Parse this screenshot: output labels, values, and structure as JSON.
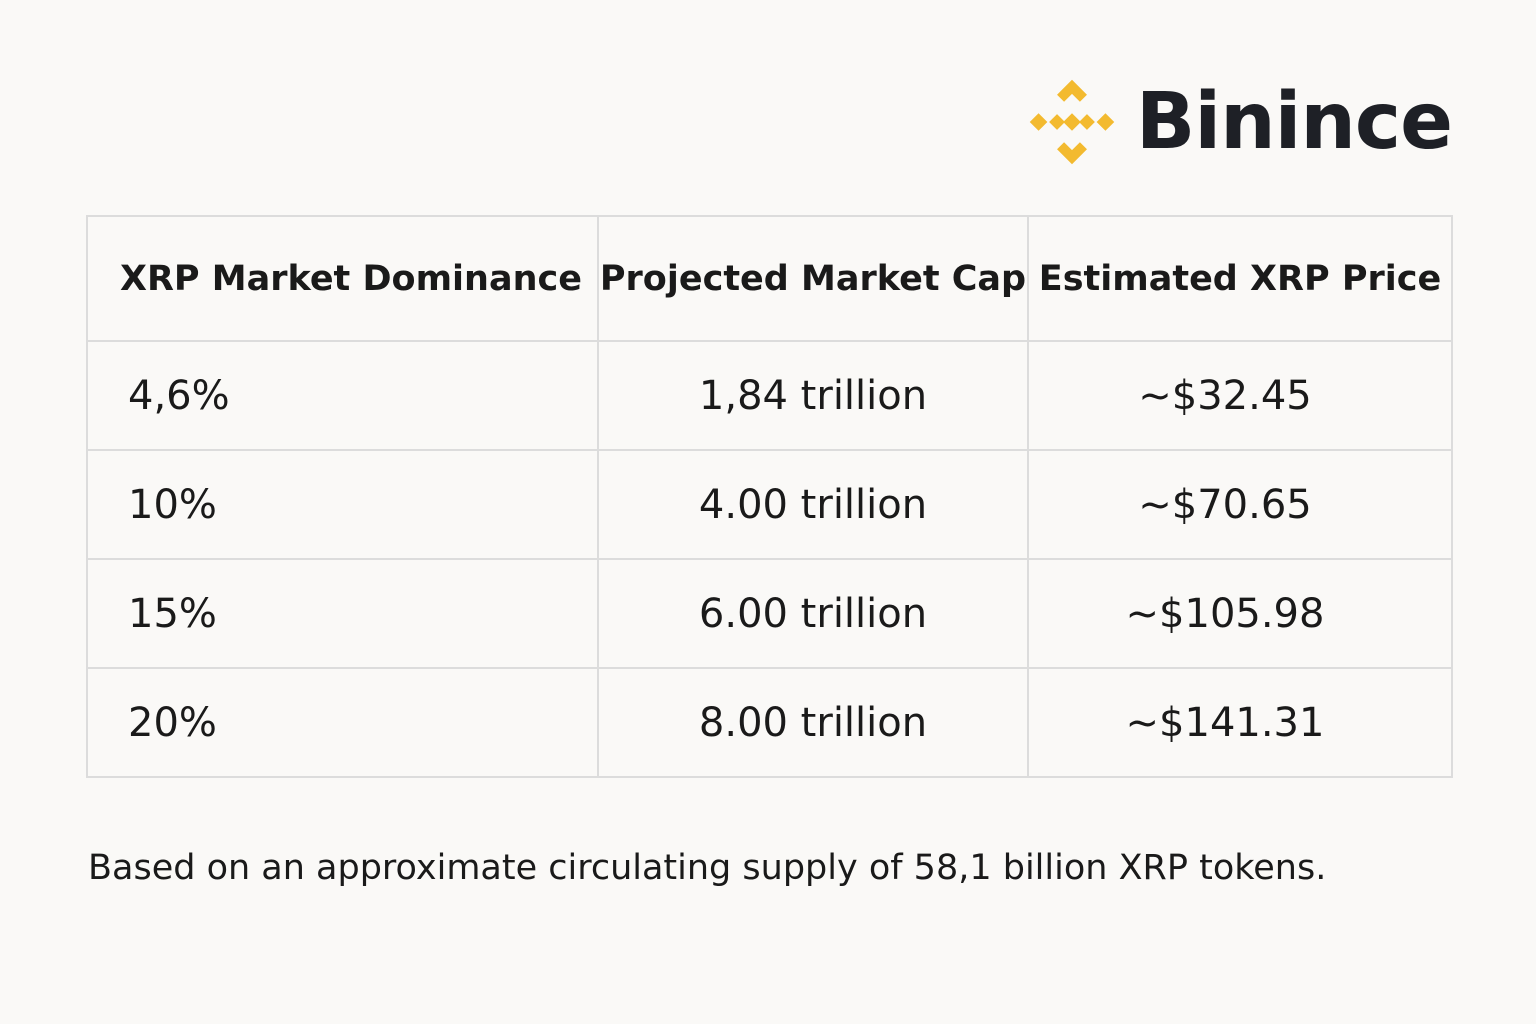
{
  "brand": {
    "name": "Binince",
    "logo_icon": "binance-diamond-icon",
    "logo_color": "#F3BA2F"
  },
  "table": {
    "headers": {
      "dominance": "XRP Market Dominance",
      "market_cap": "Projected Market Cap",
      "price": "Estimated XRP Price"
    },
    "rows": [
      {
        "dominance": "4,6%",
        "market_cap": "1,84 trillion",
        "price": "~$32.45"
      },
      {
        "dominance": "10%",
        "market_cap": "4.00 trillion",
        "price": "~$70.65"
      },
      {
        "dominance": "15%",
        "market_cap": "6.00 trillion",
        "price": "~$105.98"
      },
      {
        "dominance": "20%",
        "market_cap": "8.00 trillion",
        "price": "~$141.31"
      }
    ]
  },
  "footnote": "Based on an approximate circulating supply of 58,1 billion XRP tokens."
}
